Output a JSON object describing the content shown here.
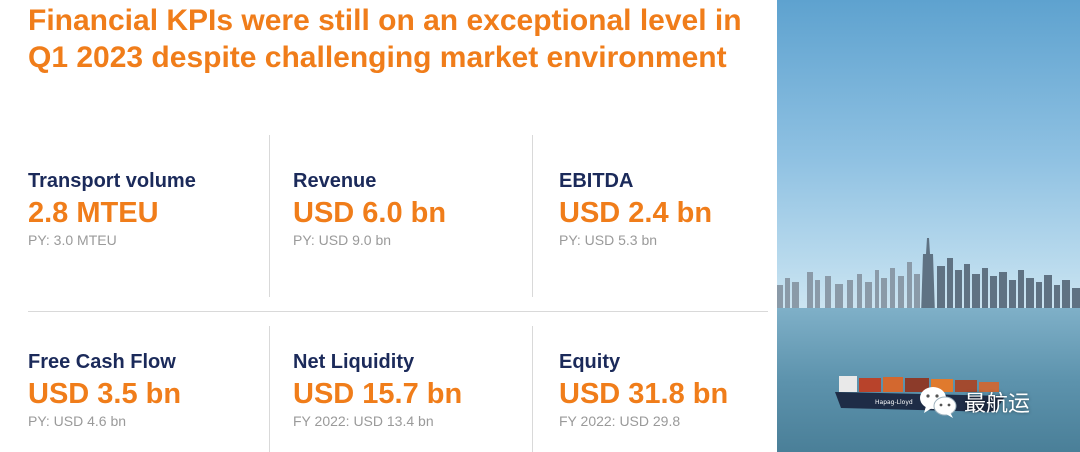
{
  "title": {
    "line1": "Financial KPIs were still on an exceptional level in",
    "line2": "Q1 2023 despite challenging market environment"
  },
  "kpis": [
    {
      "label": "Transport volume",
      "value": "2.8 MTEU",
      "prior": "PY: 3.0 MTEU"
    },
    {
      "label": "Revenue",
      "value": "USD 6.0 bn",
      "prior": "PY: USD 9.0 bn"
    },
    {
      "label": "EBITDA",
      "value": "USD 2.4 bn",
      "prior": "PY: USD 5.3 bn"
    },
    {
      "label": "Free Cash Flow",
      "value": "USD 3.5 bn",
      "prior": "PY: USD 4.6 bn"
    },
    {
      "label": "Net Liquidity",
      "value": "USD 15.7 bn",
      "prior": "FY 2022: USD 13.4 bn"
    },
    {
      "label": "Equity",
      "value": "USD 31.8 bn",
      "prior": "FY 2022: USD 29.8"
    }
  ],
  "photo": {
    "ship_text": "Hapag-Lloyd"
  },
  "watermark": {
    "icon": "wechat-icon",
    "text": "最航运"
  },
  "colors": {
    "accent": "#f07d1a",
    "label": "#1b2a5a",
    "muted": "#9a9a9a"
  }
}
